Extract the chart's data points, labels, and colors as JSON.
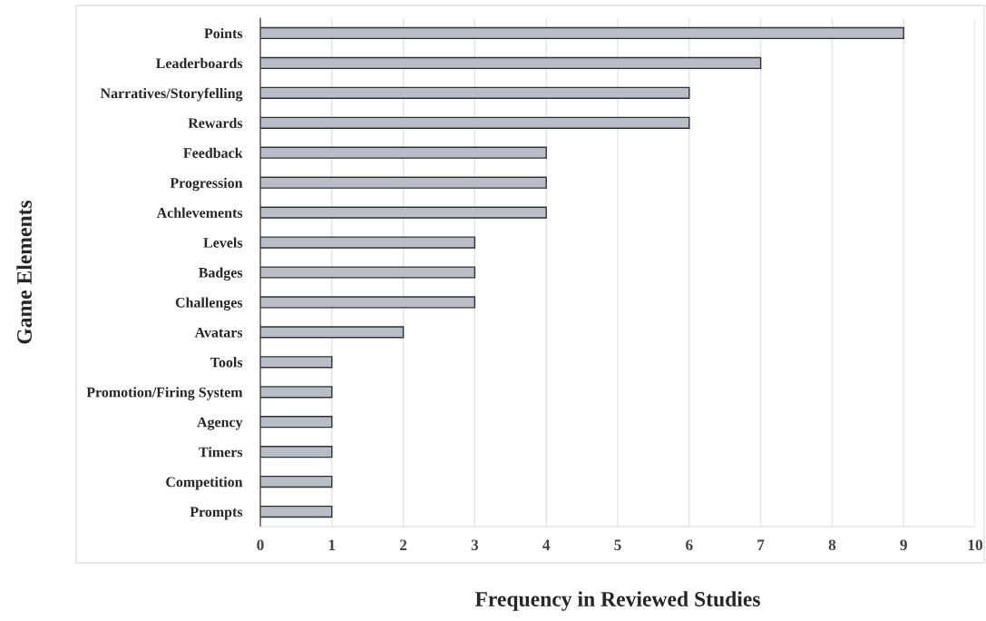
{
  "chart_data": {
    "type": "bar",
    "orientation": "horizontal",
    "categories": [
      "Points",
      "Leaderboards",
      "Narratives/Storyfelling",
      "Rewards",
      "Feedback",
      "Progression",
      "Achlevements",
      "Levels",
      "Badges",
      "Challenges",
      "Avatars",
      "Tools",
      "Promotion/Firing System",
      "Agency",
      "Timers",
      "Competition",
      "Prompts"
    ],
    "values": [
      9,
      7,
      6,
      6,
      4,
      4,
      4,
      3,
      3,
      3,
      2,
      1,
      1,
      1,
      1,
      1,
      1
    ],
    "color": "#b9bdc5",
    "xlim": [
      0,
      10
    ],
    "xticks": [
      0,
      1,
      2,
      3,
      4,
      5,
      6,
      7,
      8,
      9,
      10
    ],
    "xlabel": "Frequency in Reviewed Studies",
    "ylabel": "Game Elements",
    "grid": "x"
  }
}
